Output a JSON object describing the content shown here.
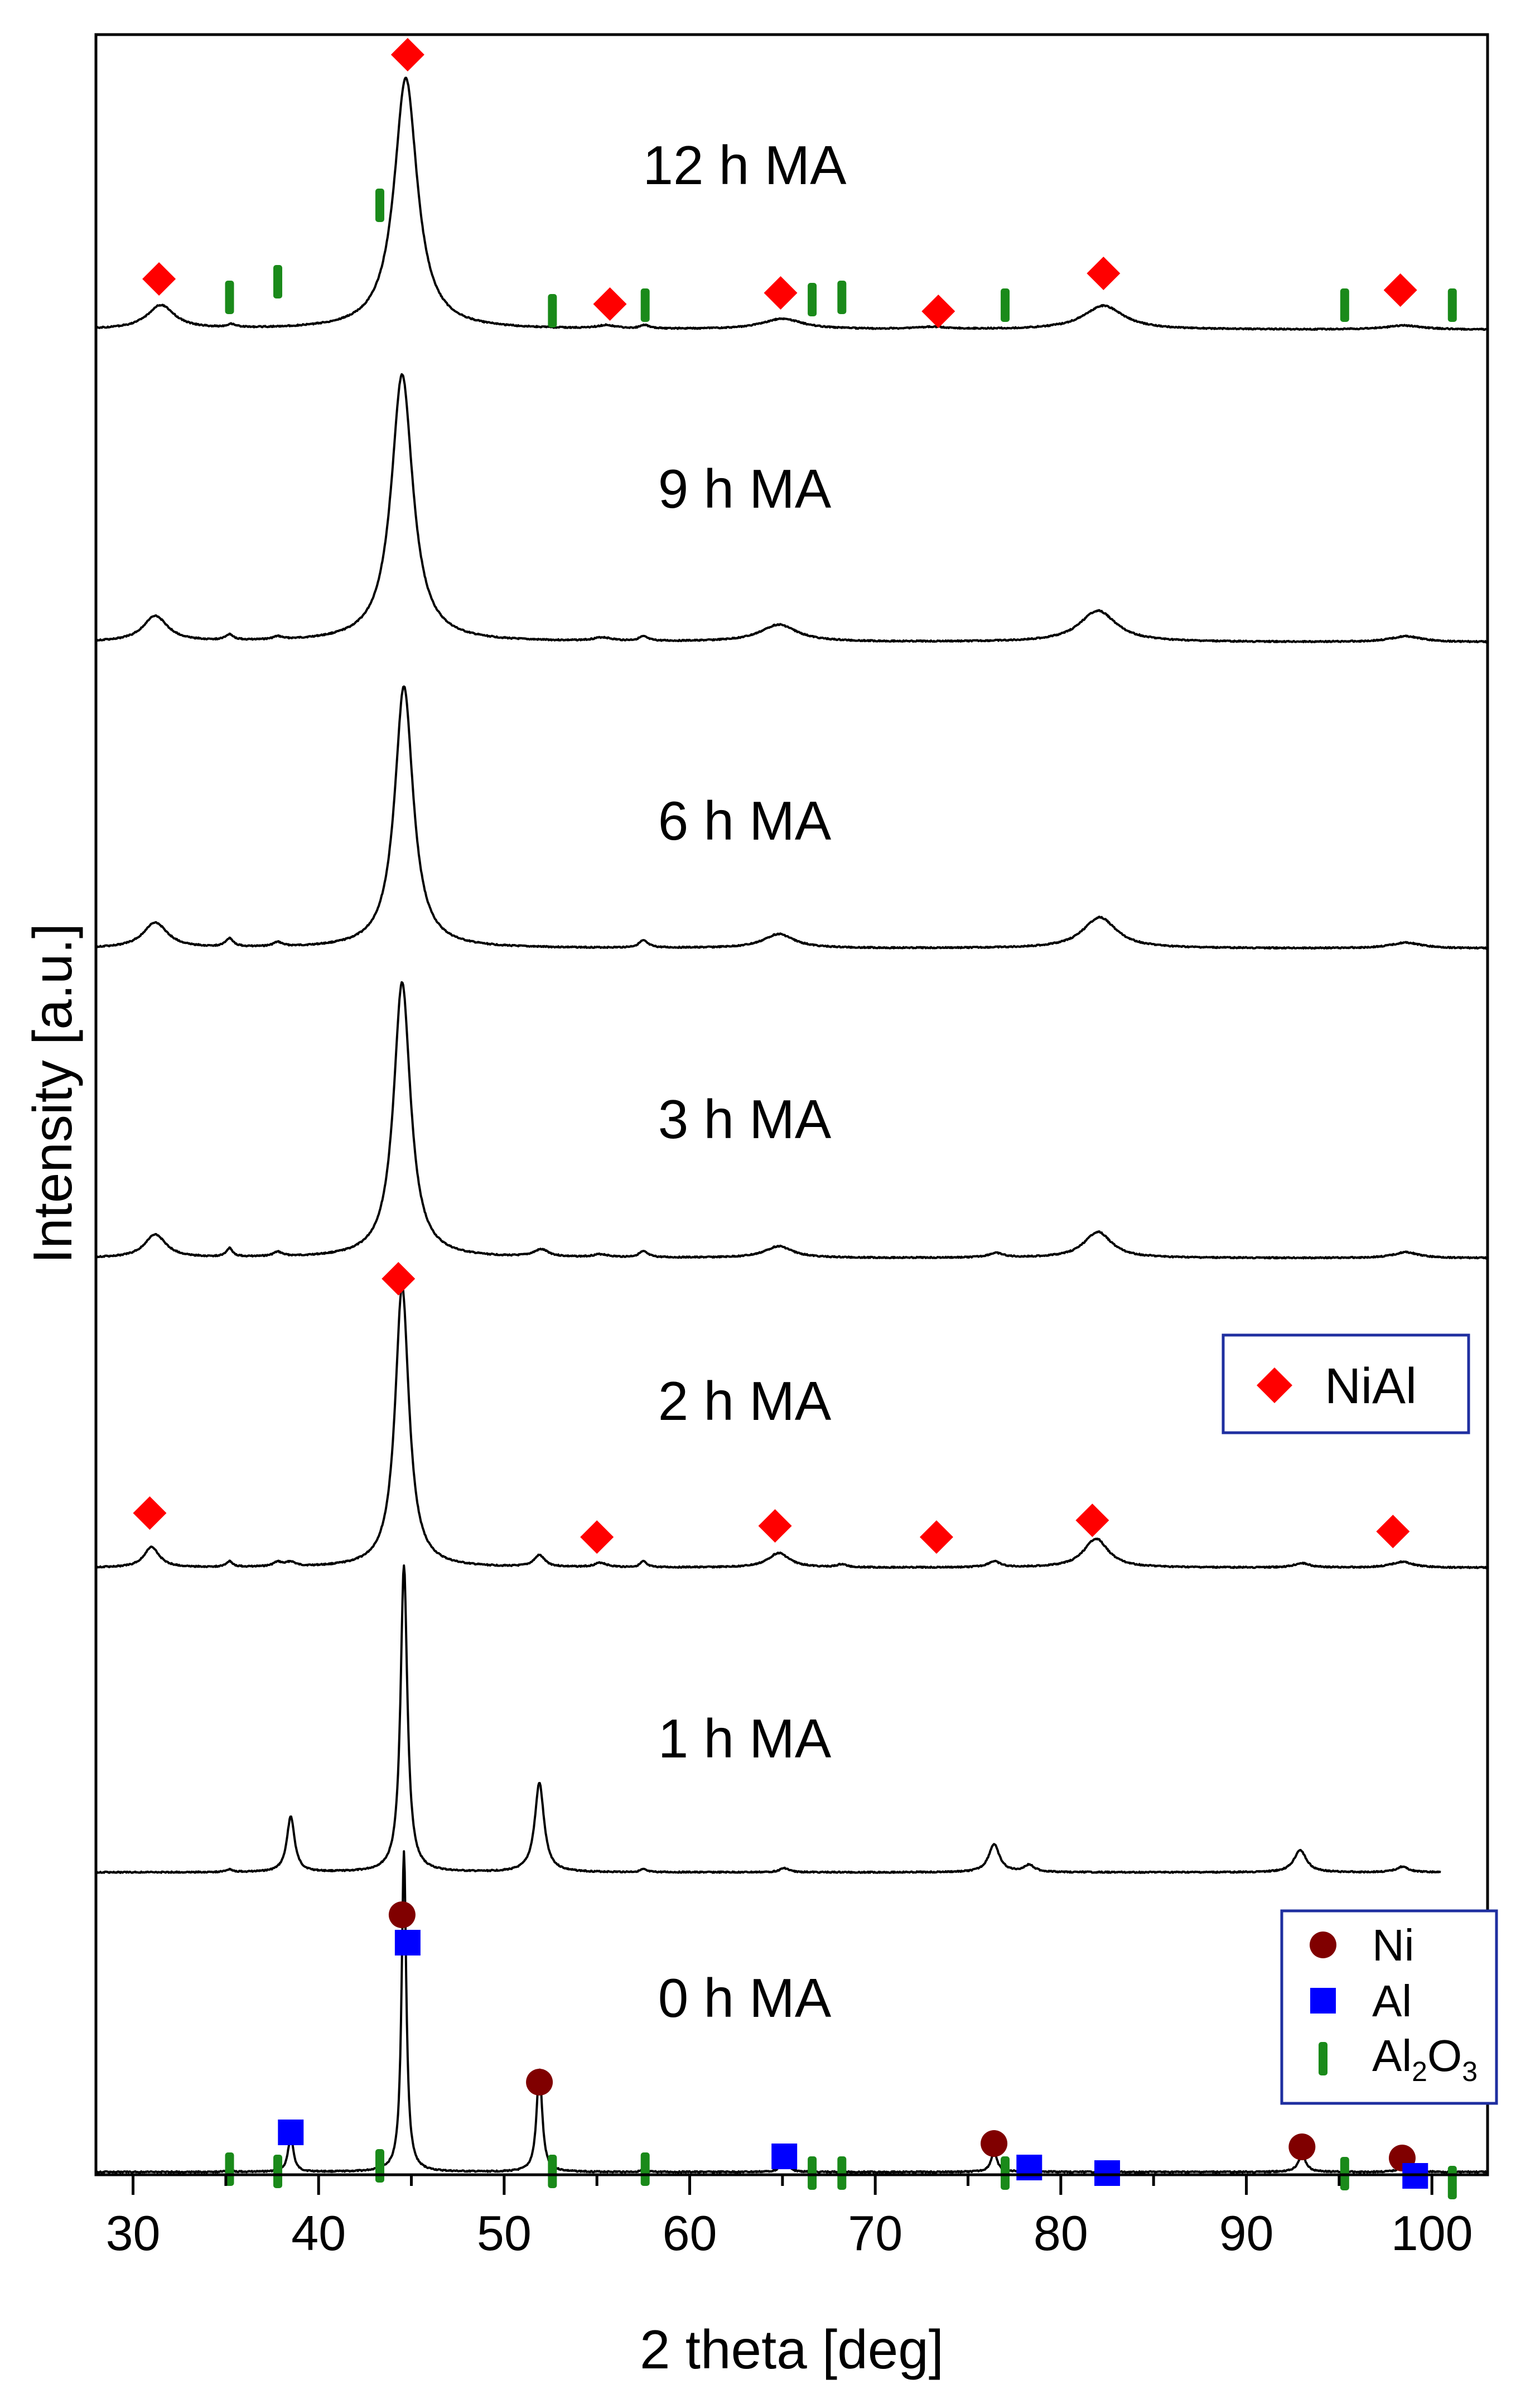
{
  "chart_data": {
    "type": "line",
    "title": "",
    "xlabel": "2 theta [deg]",
    "ylabel": "Intensity [a.u.]",
    "xlim": [
      28,
      103
    ],
    "x_ticks": [
      30,
      40,
      50,
      60,
      70,
      80,
      90,
      100
    ],
    "x_tick_labels": [
      "30",
      "40",
      "50",
      "60",
      "70",
      "80",
      "90",
      "100"
    ],
    "series": [
      {
        "name": "12 h MA",
        "label": "12 h MA",
        "x_end": 103,
        "peaks": [
          {
            "x": 31.5,
            "h": 0.09,
            "w": 0.9
          },
          {
            "x": 35.3,
            "h": 0.012,
            "w": 0.3
          },
          {
            "x": 44.7,
            "h": 0.95,
            "w": 0.75
          },
          {
            "x": 55.5,
            "h": 0.012,
            "w": 0.6
          },
          {
            "x": 57.6,
            "h": 0.012,
            "w": 0.3
          },
          {
            "x": 65.0,
            "h": 0.04,
            "w": 1.3
          },
          {
            "x": 73.0,
            "h": 0.008,
            "w": 1.0
          },
          {
            "x": 82.3,
            "h": 0.09,
            "w": 1.3
          },
          {
            "x": 98.5,
            "h": 0.015,
            "w": 1.2
          }
        ]
      },
      {
        "name": "9 h MA",
        "label": "9 h MA",
        "x_end": 103,
        "peaks": [
          {
            "x": 31.2,
            "h": 0.09,
            "w": 0.8
          },
          {
            "x": 35.2,
            "h": 0.02,
            "w": 0.25
          },
          {
            "x": 37.8,
            "h": 0.01,
            "w": 0.3
          },
          {
            "x": 44.5,
            "h": 0.94,
            "w": 0.7
          },
          {
            "x": 55.3,
            "h": 0.012,
            "w": 0.6
          },
          {
            "x": 57.5,
            "h": 0.015,
            "w": 0.3
          },
          {
            "x": 64.8,
            "h": 0.06,
            "w": 1.2
          },
          {
            "x": 82.0,
            "h": 0.11,
            "w": 1.2
          },
          {
            "x": 98.6,
            "h": 0.02,
            "w": 1.0
          }
        ]
      },
      {
        "name": "6 h MA",
        "label": "6 h MA",
        "x_end": 103,
        "peaks": [
          {
            "x": 31.2,
            "h": 0.09,
            "w": 0.8
          },
          {
            "x": 35.2,
            "h": 0.03,
            "w": 0.25
          },
          {
            "x": 37.8,
            "h": 0.015,
            "w": 0.3
          },
          {
            "x": 44.6,
            "h": 0.93,
            "w": 0.6
          },
          {
            "x": 57.5,
            "h": 0.025,
            "w": 0.3
          },
          {
            "x": 64.8,
            "h": 0.05,
            "w": 1.0
          },
          {
            "x": 82.1,
            "h": 0.11,
            "w": 1.1
          },
          {
            "x": 98.6,
            "h": 0.02,
            "w": 1.0
          }
        ]
      },
      {
        "name": "3 h MA",
        "label": "3 h MA",
        "x_end": 103,
        "peaks": [
          {
            "x": 31.2,
            "h": 0.08,
            "w": 0.7
          },
          {
            "x": 35.2,
            "h": 0.03,
            "w": 0.2
          },
          {
            "x": 37.8,
            "h": 0.015,
            "w": 0.3
          },
          {
            "x": 44.5,
            "h": 0.95,
            "w": 0.55
          },
          {
            "x": 52.0,
            "h": 0.025,
            "w": 0.5
          },
          {
            "x": 55.2,
            "h": 0.01,
            "w": 0.5
          },
          {
            "x": 57.5,
            "h": 0.02,
            "w": 0.3
          },
          {
            "x": 64.8,
            "h": 0.04,
            "w": 0.9
          },
          {
            "x": 76.5,
            "h": 0.015,
            "w": 0.5
          },
          {
            "x": 82.0,
            "h": 0.09,
            "w": 0.9
          },
          {
            "x": 98.6,
            "h": 0.02,
            "w": 0.8
          }
        ]
      },
      {
        "name": "2 h MA",
        "label": "2 h MA",
        "x_end": 103,
        "peaks": [
          {
            "x": 31.0,
            "h": 0.07,
            "w": 0.5
          },
          {
            "x": 35.2,
            "h": 0.02,
            "w": 0.2
          },
          {
            "x": 37.8,
            "h": 0.015,
            "w": 0.3
          },
          {
            "x": 38.5,
            "h": 0.015,
            "w": 0.3
          },
          {
            "x": 44.5,
            "h": 0.97,
            "w": 0.45
          },
          {
            "x": 51.9,
            "h": 0.04,
            "w": 0.35
          },
          {
            "x": 55.2,
            "h": 0.015,
            "w": 0.4
          },
          {
            "x": 57.5,
            "h": 0.02,
            "w": 0.2
          },
          {
            "x": 64.8,
            "h": 0.05,
            "w": 0.7
          },
          {
            "x": 68.2,
            "h": 0.01,
            "w": 0.3
          },
          {
            "x": 76.4,
            "h": 0.02,
            "w": 0.4
          },
          {
            "x": 81.9,
            "h": 0.1,
            "w": 0.8
          },
          {
            "x": 93.0,
            "h": 0.015,
            "w": 0.5
          },
          {
            "x": 98.4,
            "h": 0.02,
            "w": 0.7
          }
        ]
      },
      {
        "name": "1 h MA",
        "label": "1 h MA",
        "x_end": 100.5,
        "peaks": [
          {
            "x": 35.2,
            "h": 0.01,
            "w": 0.2
          },
          {
            "x": 38.5,
            "h": 0.2,
            "w": 0.25
          },
          {
            "x": 44.6,
            "h": 1.1,
            "w": 0.22
          },
          {
            "x": 51.9,
            "h": 0.32,
            "w": 0.3
          },
          {
            "x": 57.5,
            "h": 0.01,
            "w": 0.2
          },
          {
            "x": 65.1,
            "h": 0.015,
            "w": 0.3
          },
          {
            "x": 76.4,
            "h": 0.1,
            "w": 0.35
          },
          {
            "x": 78.3,
            "h": 0.025,
            "w": 0.35
          },
          {
            "x": 92.9,
            "h": 0.08,
            "w": 0.4
          },
          {
            "x": 98.4,
            "h": 0.02,
            "w": 0.4
          }
        ]
      },
      {
        "name": "0 h MA",
        "label": "0 h MA",
        "x_end": 103,
        "peaks": [
          {
            "x": 35.2,
            "h": 0.01,
            "w": 0.15
          },
          {
            "x": 38.5,
            "h": 0.13,
            "w": 0.17
          },
          {
            "x": 43.3,
            "h": 0.01,
            "w": 0.15
          },
          {
            "x": 44.6,
            "h": 1.15,
            "w": 0.15
          },
          {
            "x": 51.9,
            "h": 0.37,
            "w": 0.18
          },
          {
            "x": 57.5,
            "h": 0.008,
            "w": 0.15
          },
          {
            "x": 65.1,
            "h": 0.05,
            "w": 0.2
          },
          {
            "x": 76.4,
            "h": 0.07,
            "w": 0.2
          },
          {
            "x": 78.3,
            "h": 0.03,
            "w": 0.2
          },
          {
            "x": 93.0,
            "h": 0.06,
            "w": 0.25
          },
          {
            "x": 98.4,
            "h": 0.02,
            "w": 0.25
          },
          {
            "x": 99.1,
            "h": 0.015,
            "w": 0.2
          }
        ]
      }
    ],
    "phase_markers": {
      "NiAl": {
        "symbol": "diamond",
        "color": "#ff0000",
        "12 h MA": [
          31.4,
          44.8,
          55.7,
          64.9,
          73.4,
          82.3,
          98.3
        ],
        "2 h MA": [
          30.9,
          44.3,
          55.0,
          64.6,
          73.3,
          81.7,
          97.9
        ]
      },
      "Al2O3": {
        "symbol": "bar",
        "color": "#1a8a1a",
        "12 h MA": [
          35.2,
          37.8,
          43.3,
          52.6,
          57.6,
          66.6,
          68.2,
          77.0,
          95.3,
          101.1
        ],
        "0 h MA": [
          35.2,
          37.8,
          43.3,
          52.6,
          57.6,
          66.6,
          68.2,
          77.0,
          95.3,
          101.1
        ]
      },
      "Ni": {
        "symbol": "circle",
        "color": "#800000",
        "0 h MA": [
          44.5,
          51.9,
          76.4,
          93.0,
          98.4
        ]
      },
      "Al": {
        "symbol": "square",
        "color": "#0000ff",
        "0 h MA": [
          38.5,
          44.8,
          65.1,
          78.3,
          82.5,
          99.1
        ]
      }
    },
    "legends": [
      {
        "position": "middle-right",
        "entries": [
          {
            "symbol": "diamond",
            "color": "#ff0000",
            "label": "NiAl"
          }
        ]
      },
      {
        "position": "bottom-right",
        "entries": [
          {
            "symbol": "circle",
            "color": "#800000",
            "label": "Ni"
          },
          {
            "symbol": "square",
            "color": "#0000ff",
            "label": "Al"
          },
          {
            "symbol": "bar",
            "color": "#1a8a1a",
            "label": "Al",
            "sub1": "2",
            "mid": "O",
            "sub2": "3"
          }
        ]
      }
    ]
  }
}
